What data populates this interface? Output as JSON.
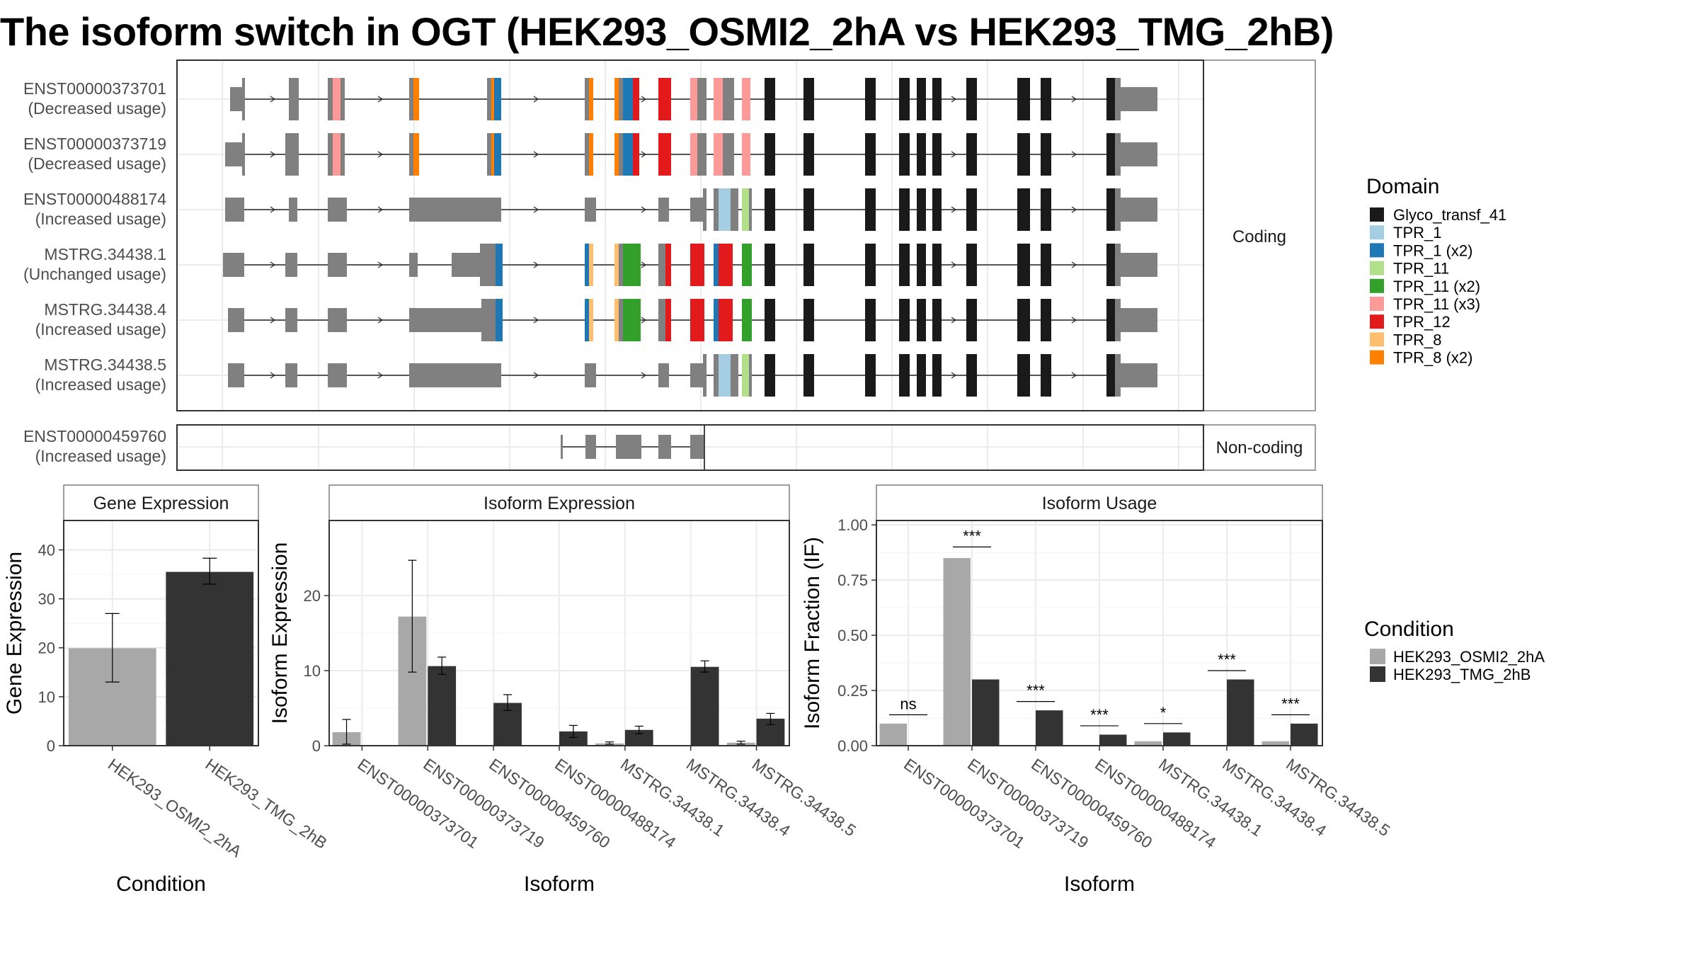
{
  "title": "The isoform switch in OGT (HEK293_OSMI2_2hA vs HEK293_TMG_2hB)",
  "colors": {
    "intron": "#262626",
    "utr": "#808080",
    "grid": "#ebebeb",
    "panel_border": "#333333",
    "strip_border": "#7f7f7f",
    "condition_a": "#a8a8a8",
    "condition_b": "#333333"
  },
  "transcripts": {
    "coding_strip": "Coding",
    "noncoding_strip": "Non-coding",
    "coding": [
      {
        "id": "ENST00000373701",
        "usage": "(Decreased usage)"
      },
      {
        "id": "ENST00000373719",
        "usage": "(Decreased usage)"
      },
      {
        "id": "ENST00000488174",
        "usage": "(Increased usage)"
      },
      {
        "id": "MSTRG.34438.1",
        "usage": "(Unchanged usage)"
      },
      {
        "id": "MSTRG.34438.4",
        "usage": "(Increased usage)"
      },
      {
        "id": "MSTRG.34438.5",
        "usage": "(Increased usage)"
      }
    ],
    "noncoding": [
      {
        "id": "ENST00000459760",
        "usage": "(Increased usage)"
      }
    ]
  },
  "domain_legend": {
    "title": "Domain",
    "items": [
      {
        "label": "Glyco_transf_41",
        "color": "#1a1a1a"
      },
      {
        "label": "TPR_1",
        "color": "#a6cee3"
      },
      {
        "label": "TPR_1 (x2)",
        "color": "#1f78b4"
      },
      {
        "label": "TPR_11",
        "color": "#b2df8a"
      },
      {
        "label": "TPR_11 (x2)",
        "color": "#33a02c"
      },
      {
        "label": "TPR_11 (x3)",
        "color": "#fb9a99"
      },
      {
        "label": "TPR_12",
        "color": "#e31a1c"
      },
      {
        "label": "TPR_8",
        "color": "#fdbf6f"
      },
      {
        "label": "TPR_8 (x2)",
        "color": "#ff7f00"
      }
    ]
  },
  "condition_legend": {
    "title": "Condition",
    "items": [
      {
        "label": "HEK293_OSMI2_2hA",
        "color": "#a8a8a8"
      },
      {
        "label": "HEK293_TMG_2hB",
        "color": "#333333"
      }
    ]
  },
  "chart_data": [
    {
      "type": "bar",
      "title": "Gene Expression",
      "xlabel": "Condition",
      "ylabel": "Gene Expression",
      "ylim": [
        0,
        46
      ],
      "yticks": [
        0,
        10,
        20,
        30,
        40
      ],
      "categories": [
        "HEK293_OSMI2_2hA",
        "HEK293_TMG_2hB"
      ],
      "values": [
        19.9,
        35.5
      ],
      "error_low": [
        13.0,
        33.0
      ],
      "error_high": [
        27.0,
        38.3
      ]
    },
    {
      "type": "bar",
      "title": "Isoform Expression",
      "xlabel": "Isoform",
      "ylabel": "Isoform Expression",
      "ylim": [
        0,
        30
      ],
      "yticks": [
        0,
        10,
        20
      ],
      "categories": [
        "ENST00000373701",
        "ENST00000373719",
        "ENST00000459760",
        "ENST00000488174",
        "MSTRG.34438.1",
        "MSTRG.34438.4",
        "MSTRG.34438.5"
      ],
      "series": [
        {
          "name": "HEK293_OSMI2_2hA",
          "values": [
            1.8,
            17.2,
            0.0,
            0.0,
            0.3,
            0.0,
            0.4
          ],
          "error_low": [
            0.2,
            9.8,
            0.0,
            0.0,
            0.2,
            0.0,
            0.2
          ],
          "error_high": [
            3.5,
            24.7,
            0.0,
            0.0,
            0.5,
            0.0,
            0.6
          ]
        },
        {
          "name": "HEK293_TMG_2hB",
          "values": [
            0.0,
            10.6,
            5.7,
            1.9,
            2.1,
            10.5,
            3.6
          ],
          "error_low": [
            0.0,
            9.5,
            4.7,
            1.1,
            1.6,
            9.8,
            2.8
          ],
          "error_high": [
            0.0,
            11.8,
            6.8,
            2.7,
            2.6,
            11.3,
            4.3
          ]
        }
      ]
    },
    {
      "type": "bar",
      "title": "Isoform Usage",
      "xlabel": "Isoform",
      "ylabel": "Isoform Fraction (IF)",
      "ylim": [
        0,
        1.02
      ],
      "yticks": [
        "0.00",
        "0.25",
        "0.50",
        "0.75",
        "1.00"
      ],
      "categories": [
        "ENST00000373701",
        "ENST00000373719",
        "ENST00000459760",
        "ENST00000488174",
        "MSTRG.34438.1",
        "MSTRG.34438.4",
        "MSTRG.34438.5"
      ],
      "series": [
        {
          "name": "HEK293_OSMI2_2hA",
          "values": [
            0.1,
            0.85,
            0.0,
            0.0,
            0.02,
            0.0,
            0.02
          ]
        },
        {
          "name": "HEK293_TMG_2hB",
          "values": [
            0.0,
            0.3,
            0.16,
            0.05,
            0.06,
            0.3,
            0.1
          ]
        }
      ],
      "significance": [
        {
          "label": "ns",
          "y": 0.14
        },
        {
          "label": "***",
          "y": 0.9
        },
        {
          "label": "***",
          "y": 0.2
        },
        {
          "label": "***",
          "y": 0.09
        },
        {
          "label": "*",
          "y": 0.1
        },
        {
          "label": "***",
          "y": 0.34
        },
        {
          "label": "***",
          "y": 0.14
        }
      ]
    }
  ]
}
